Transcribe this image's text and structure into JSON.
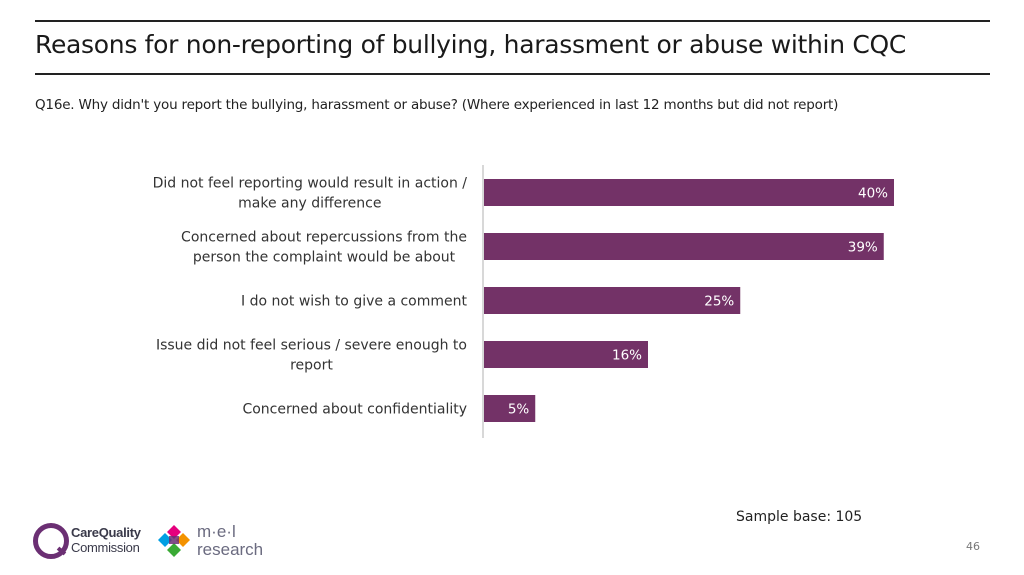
{
  "header": {
    "title": "Reasons for non-reporting of bullying, harassment or abuse within CQC",
    "question": "Q16e. Why didn't you report the bullying, harassment or abuse? (Where experienced in last 12 months but did not report)"
  },
  "footer": {
    "sample_base": "Sample base: 105",
    "page_number": "46",
    "cqc_logo_line1": "CareQuality",
    "cqc_logo_line2": "Commission",
    "mel_logo_line1": "m·e·l",
    "mel_logo_line2": "research"
  },
  "colors": {
    "bar": "#733267",
    "label_text": "#ffffff",
    "axis": "#cccccc"
  },
  "chart_data": {
    "type": "bar",
    "orientation": "horizontal",
    "categories": [
      [
        "Did not feel reporting would result in action /",
        "make any difference"
      ],
      [
        "Concerned about repercussions from the",
        "person the complaint would be about"
      ],
      [
        "I do not wish to give a comment"
      ],
      [
        "Issue did not feel serious / severe enough to",
        "report"
      ],
      [
        "Concerned about confidentiality"
      ]
    ],
    "values": [
      40,
      39,
      25,
      16,
      5
    ],
    "data_labels": [
      "40%",
      "39%",
      "25%",
      "16%",
      "5%"
    ],
    "xlim": [
      0,
      100
    ],
    "unit": "%",
    "grid": false,
    "legend": "none"
  }
}
